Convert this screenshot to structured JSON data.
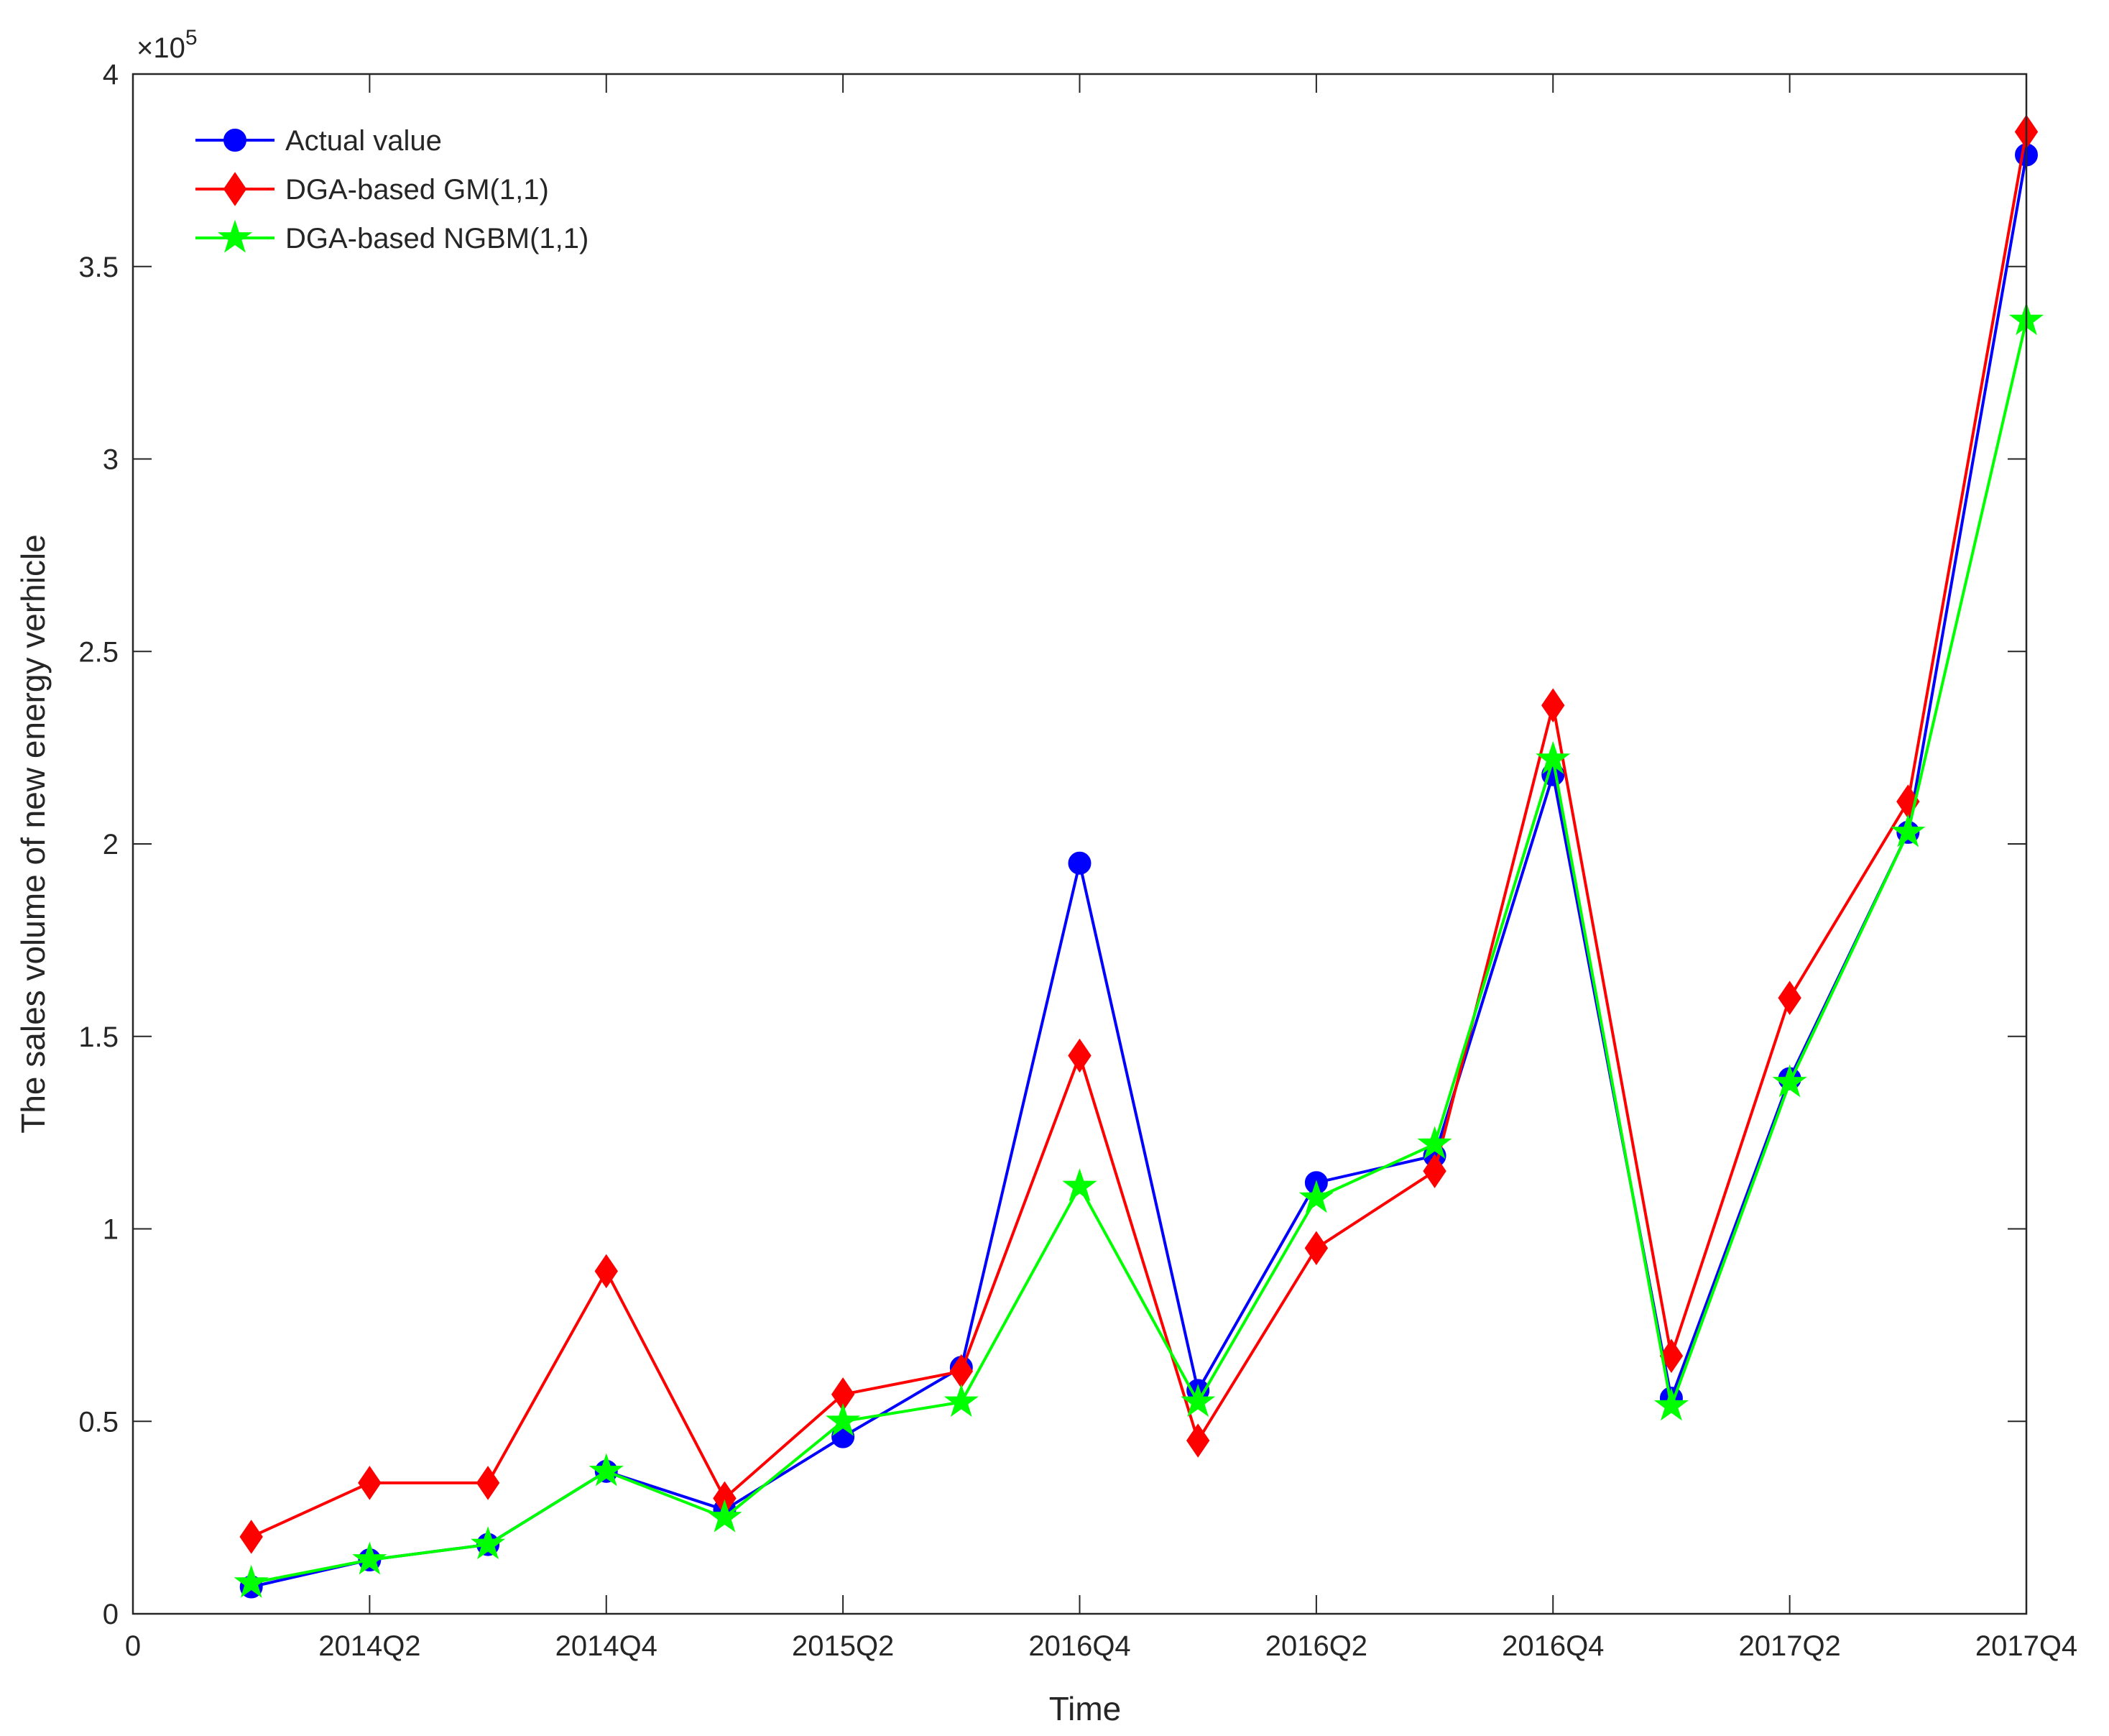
{
  "chart_data": {
    "type": "line",
    "xlabel": "Time",
    "ylabel": "The sales volume of new energy verhicle",
    "y_multiplier": "×10",
    "y_multiplier_exp": "5",
    "xlim": [
      0,
      16
    ],
    "ylim": [
      0,
      4
    ],
    "x_ticks": [
      0,
      2,
      4,
      6,
      8,
      10,
      12,
      14,
      16
    ],
    "x_tick_labels": [
      "0",
      "2014Q2",
      "2014Q4",
      "2015Q2",
      "2016Q4",
      "2016Q2",
      "2016Q4",
      "2017Q2",
      "2017Q4"
    ],
    "y_ticks": [
      0,
      0.5,
      1,
      1.5,
      2,
      2.5,
      3,
      3.5,
      4
    ],
    "y_tick_labels": [
      "0",
      "0.5",
      "1",
      "1.5",
      "2",
      "2.5",
      "3",
      "3.5",
      "4"
    ],
    "grid": false,
    "legend_position": "top-left",
    "x": [
      1,
      2,
      3,
      4,
      5,
      6,
      7,
      8,
      9,
      10,
      11,
      12,
      13,
      14,
      15,
      16
    ],
    "series": [
      {
        "name": "Actual value",
        "color": "#0000ff",
        "marker": "circle",
        "values": [
          0.07,
          0.14,
          0.18,
          0.37,
          0.27,
          0.46,
          0.64,
          1.95,
          0.58,
          1.12,
          1.19,
          2.18,
          0.56,
          1.39,
          2.03,
          3.79
        ]
      },
      {
        "name": "DGA-based GM(1,1)",
        "color": "#ff0000",
        "marker": "diamond",
        "values": [
          0.2,
          0.34,
          0.34,
          0.89,
          0.3,
          0.57,
          0.63,
          1.45,
          0.45,
          0.95,
          1.15,
          2.36,
          0.67,
          1.6,
          2.11,
          3.85
        ]
      },
      {
        "name": "DGA-based NGBM(1,1)",
        "color": "#00ff00",
        "marker": "star",
        "values": [
          0.08,
          0.14,
          0.18,
          0.37,
          0.25,
          0.5,
          0.55,
          1.11,
          0.55,
          1.08,
          1.22,
          2.22,
          0.54,
          1.38,
          2.03,
          3.36
        ]
      }
    ]
  }
}
